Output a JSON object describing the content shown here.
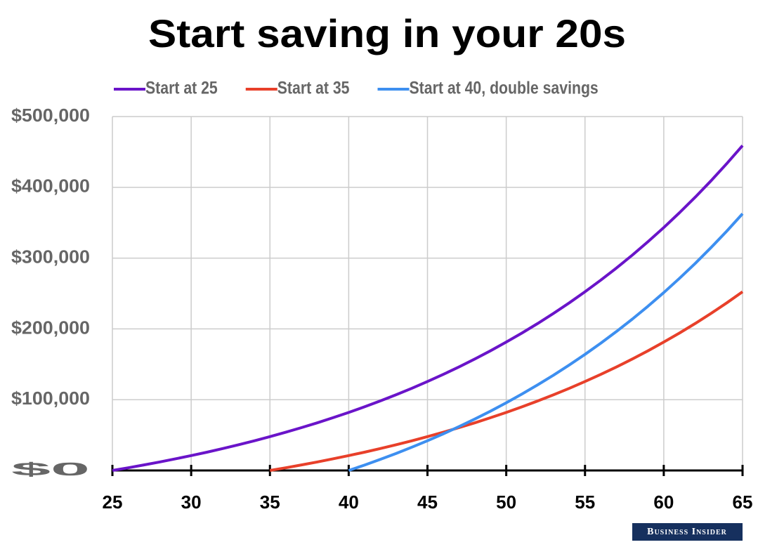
{
  "chart_data": {
    "type": "line",
    "title": "Start saving in your 20s",
    "x": [
      25,
      26,
      27,
      28,
      29,
      30,
      31,
      32,
      33,
      34,
      35,
      36,
      37,
      38,
      39,
      40,
      41,
      42,
      43,
      44,
      45,
      46,
      47,
      48,
      49,
      50,
      51,
      52,
      53,
      54,
      55,
      56,
      57,
      58,
      59,
      60,
      61,
      62,
      63,
      64,
      65
    ],
    "series": [
      {
        "name": "Start at 25",
        "color": "#6a14c9",
        "values": [
          0,
          3800,
          7800,
          12000,
          16400,
          21000,
          25800,
          30900,
          36300,
          41900,
          47800,
          54000,
          60500,
          67300,
          74500,
          82000,
          89900,
          98200,
          106900,
          116000,
          125700,
          135700,
          146300,
          157400,
          169100,
          181400,
          194200,
          207700,
          221900,
          236800,
          252500,
          268900,
          286100,
          304200,
          323300,
          343200,
          364200,
          386200,
          409300,
          433600,
          459000
        ]
      },
      {
        "name": "Start at 35",
        "color": "#e8402a",
        "values": [
          null,
          null,
          null,
          null,
          null,
          null,
          null,
          null,
          null,
          null,
          0,
          3800,
          7800,
          12000,
          16400,
          21000,
          25800,
          30900,
          36300,
          41900,
          47800,
          54000,
          60500,
          67300,
          74500,
          82000,
          89900,
          98200,
          106900,
          116000,
          125700,
          135700,
          146300,
          157400,
          169100,
          181400,
          194200,
          207700,
          221900,
          236800,
          252500
        ]
      },
      {
        "name": "Start at 40, double savings",
        "color": "#3d8ff0",
        "values": [
          null,
          null,
          null,
          null,
          null,
          null,
          null,
          null,
          null,
          null,
          null,
          null,
          null,
          null,
          null,
          0,
          7600,
          15600,
          23900,
          32800,
          42000,
          51700,
          61900,
          72600,
          83800,
          95600,
          108000,
          121000,
          134600,
          149000,
          164000,
          179800,
          196400,
          213800,
          232100,
          251300,
          271500,
          292600,
          314900,
          338200,
          362700
        ]
      }
    ],
    "xlim": [
      25,
      65
    ],
    "xticks": [
      25,
      30,
      35,
      40,
      45,
      50,
      55,
      60,
      65
    ],
    "ylim": [
      0,
      500000
    ],
    "yticks": [
      {
        "value": 0,
        "label": "$0"
      },
      {
        "value": 100000,
        "label": "$100,000"
      },
      {
        "value": 200000,
        "label": "$200,000"
      },
      {
        "value": 300000,
        "label": "$300,000"
      },
      {
        "value": 400000,
        "label": "$400,000"
      },
      {
        "value": 500000,
        "label": "$500,000"
      }
    ],
    "grid": true,
    "legend": "top",
    "source": "Business Insider"
  }
}
